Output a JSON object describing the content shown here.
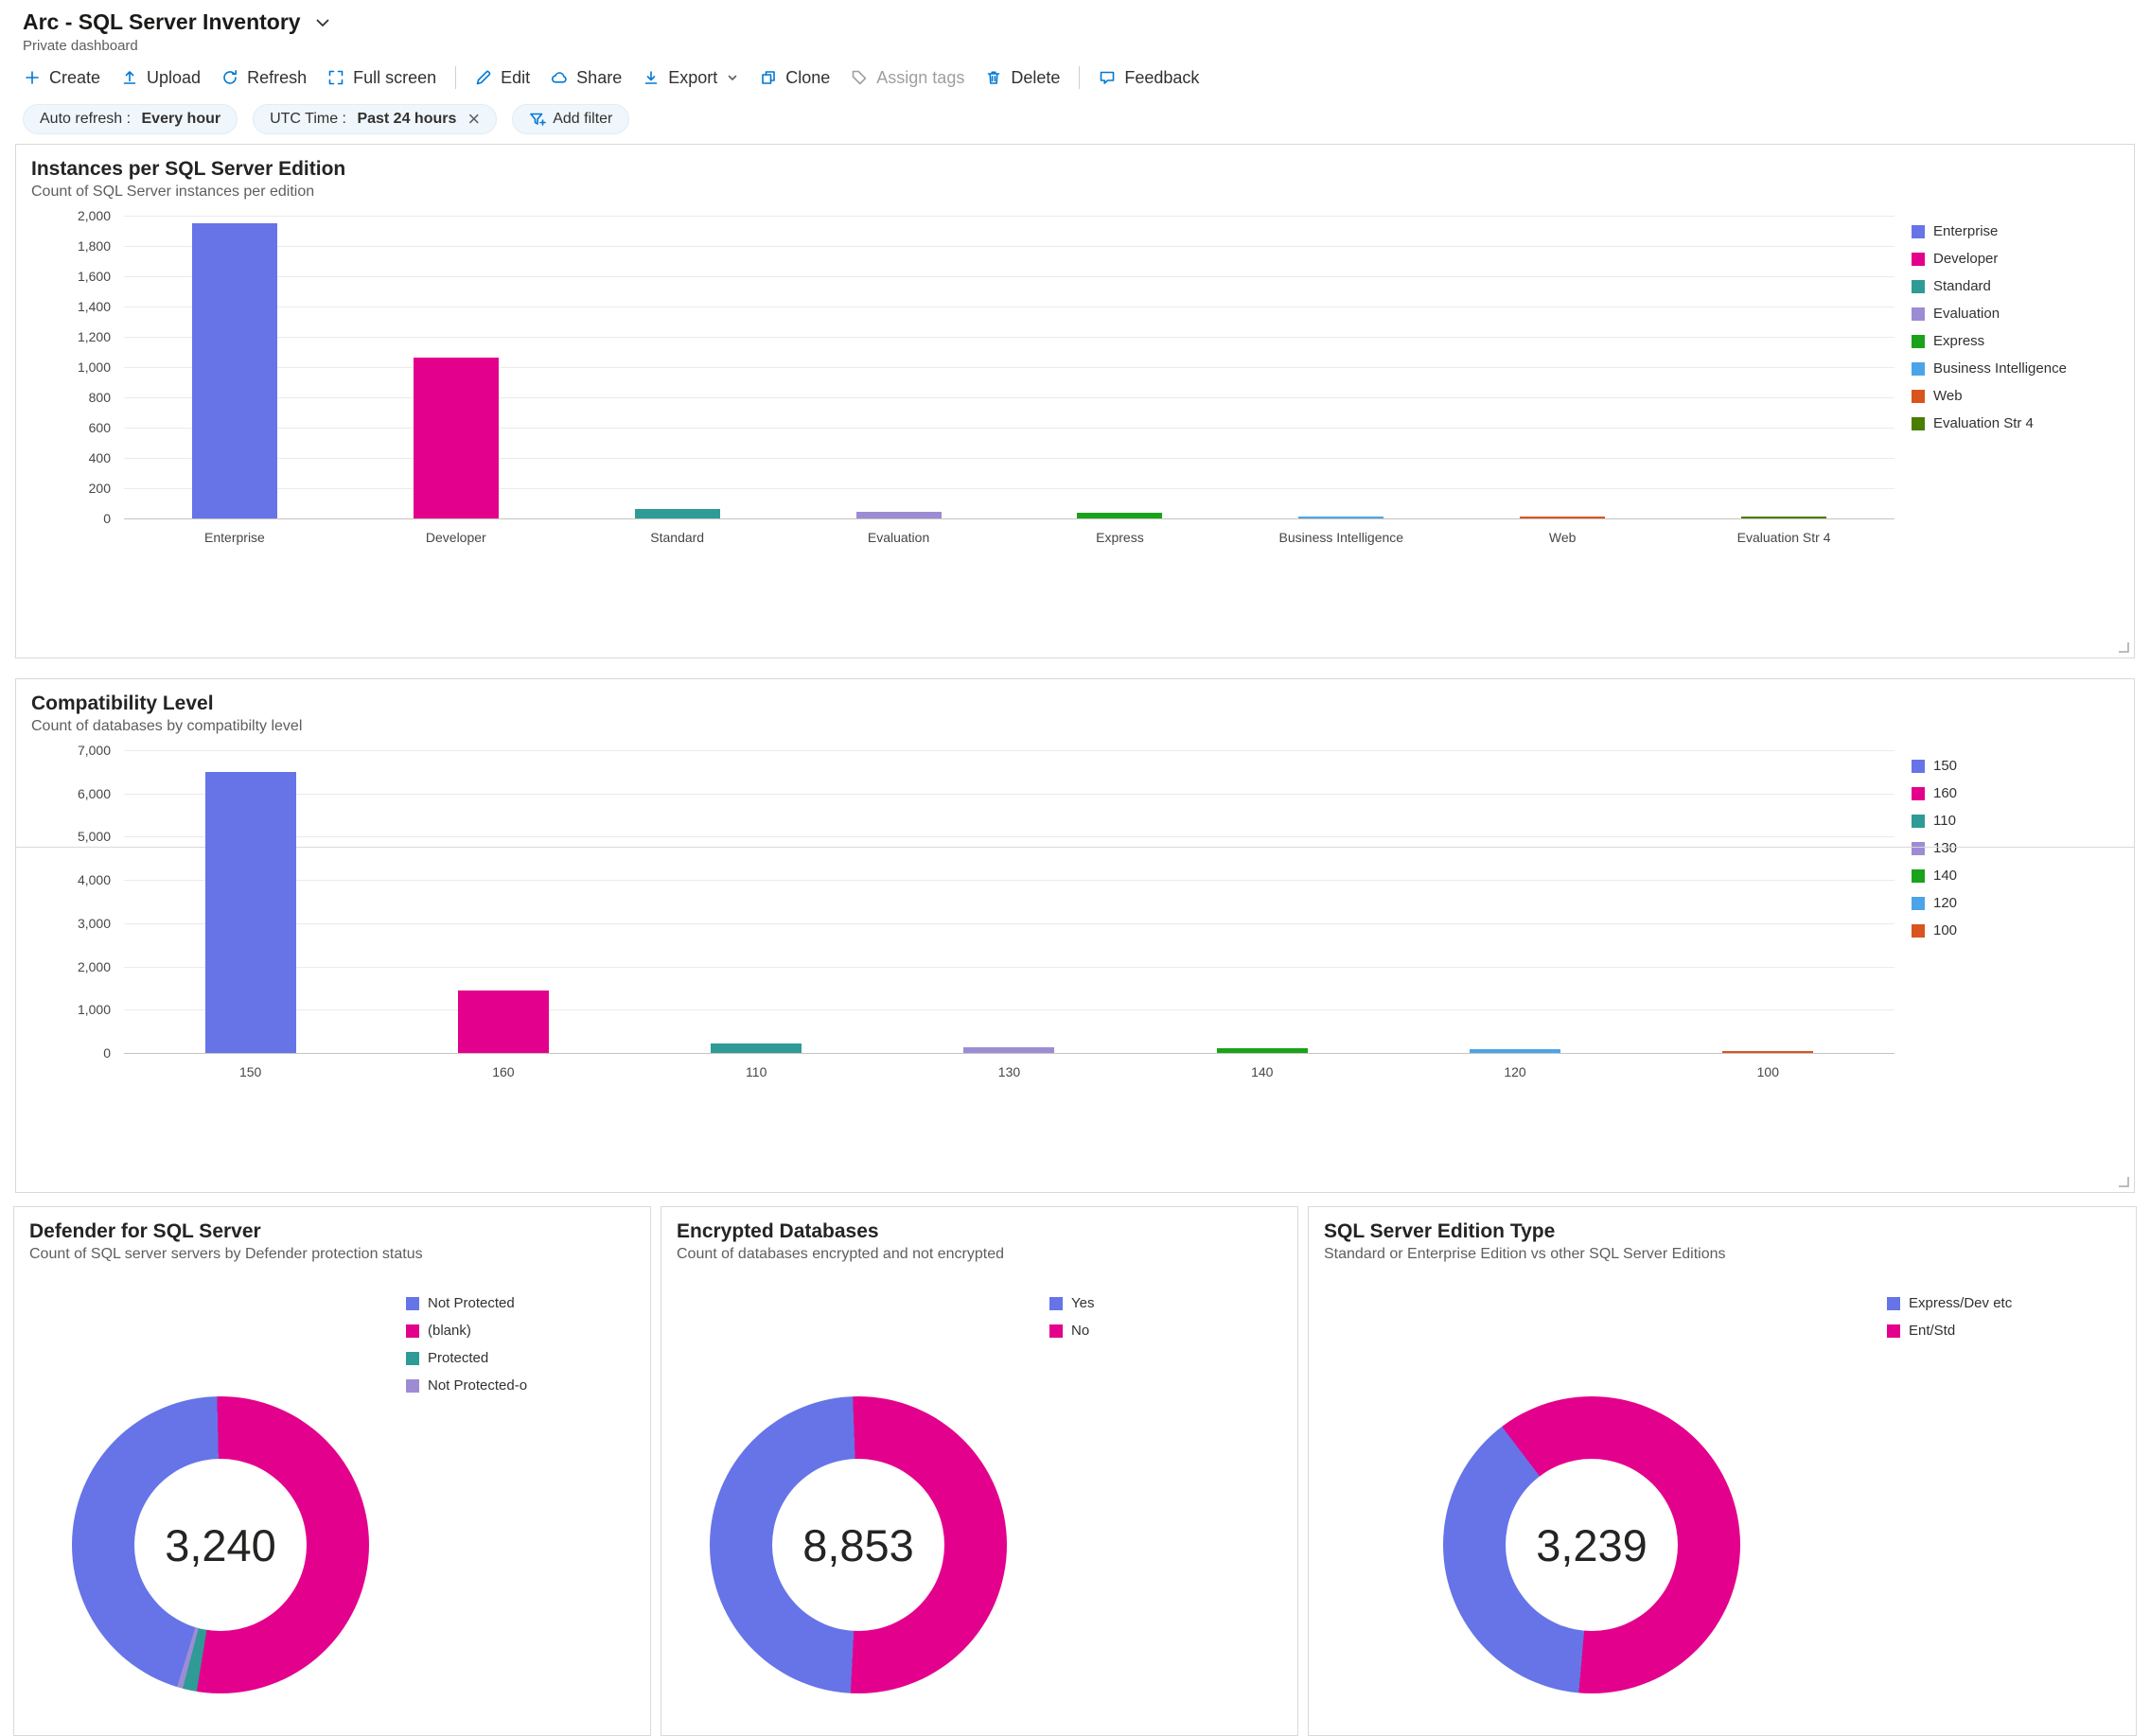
{
  "colors": {
    "accent": "#0078d4",
    "disabled": "#a19f9d",
    "chevron": "#605e5c"
  },
  "header": {
    "title": "Arc - SQL Server Inventory",
    "subtitle": "Private dashboard"
  },
  "toolbar": [
    {
      "id": "create",
      "label": "Create",
      "icon": "plus-icon",
      "enabled": true
    },
    {
      "id": "upload",
      "label": "Upload",
      "icon": "upload-icon",
      "enabled": true
    },
    {
      "id": "refresh",
      "label": "Refresh",
      "icon": "refresh-icon",
      "enabled": true
    },
    {
      "id": "fullscreen",
      "label": "Full screen",
      "icon": "fullscreen-icon",
      "enabled": true,
      "divider_after": true
    },
    {
      "id": "edit",
      "label": "Edit",
      "icon": "pencil-icon",
      "enabled": true
    },
    {
      "id": "share",
      "label": "Share",
      "icon": "cloud-icon",
      "enabled": true
    },
    {
      "id": "export",
      "label": "Export",
      "icon": "download-icon",
      "enabled": true,
      "has_chevron": true
    },
    {
      "id": "clone",
      "label": "Clone",
      "icon": "copy-icon",
      "enabled": true
    },
    {
      "id": "assign-tags",
      "label": "Assign tags",
      "icon": "tag-icon",
      "enabled": false
    },
    {
      "id": "delete",
      "label": "Delete",
      "icon": "trash-icon",
      "enabled": true,
      "divider_after": true
    },
    {
      "id": "feedback",
      "label": "Feedback",
      "icon": "feedback-icon",
      "enabled": true
    }
  ],
  "filters": {
    "pills": [
      {
        "label": "Auto refresh :",
        "value": "Every hour",
        "removable": false
      },
      {
        "label": "UTC Time :",
        "value": "Past 24 hours",
        "removable": true
      }
    ],
    "add_filter_label": "Add filter"
  },
  "chart_data": [
    {
      "id": "instances-per-sql-server-edition",
      "type": "bar",
      "title": "Instances per SQL Server Edition",
      "subtitle": "Count of SQL Server instances per edition",
      "categories": [
        "Enterprise",
        "Developer",
        "Standard",
        "Evaluation",
        "Express",
        "Business Intelligence",
        "Web",
        "Evaluation Str 4"
      ],
      "values": [
        1950,
        1060,
        60,
        45,
        40,
        8,
        5,
        4
      ],
      "colors": [
        "#6674E8",
        "#E3008C",
        "#2E9B97",
        "#9D8CD4",
        "#1AA31A",
        "#4CA4E8",
        "#D9551D",
        "#4A7D00"
      ],
      "ylim": [
        0,
        2000
      ],
      "ytick_step": 200,
      "grid": true,
      "legend_position": "right"
    },
    {
      "id": "compatibility-level",
      "type": "bar",
      "title": "Compatibility Level",
      "subtitle": "Count of databases by compatibilty level",
      "categories": [
        "150",
        "160",
        "110",
        "130",
        "140",
        "120",
        "100"
      ],
      "values": [
        6500,
        1450,
        230,
        130,
        110,
        90,
        15
      ],
      "colors": [
        "#6674E8",
        "#E3008C",
        "#2E9B97",
        "#9D8CD4",
        "#1AA31A",
        "#4CA4E8",
        "#D9551D"
      ],
      "ylim": [
        0,
        7000
      ],
      "ytick_step": 1000,
      "grid": true,
      "legend_position": "right"
    },
    {
      "id": "defender-for-sql-server",
      "type": "donut",
      "title": "Defender for SQL Server",
      "subtitle": "Count of SQL server servers by Defender protection status",
      "center_label": "3,240",
      "total": 3240,
      "slices": [
        {
          "label": "Not Protected",
          "value": 1455,
          "color": "#6674E8"
        },
        {
          "label": "(blank)",
          "value": 1715,
          "color": "#E3008C"
        },
        {
          "label": "Protected",
          "value": 50,
          "color": "#2E9B97"
        },
        {
          "label": "Not Protected-o",
          "value": 20,
          "color": "#9D8CD4"
        }
      ],
      "start_angle": 197,
      "legend_position": "right"
    },
    {
      "id": "encrypted-databases",
      "type": "donut",
      "title": "Encrypted Databases",
      "subtitle": "Count of databases encrypted and not encrypted",
      "center_label": "8,853",
      "total": 8853,
      "slices": [
        {
          "label": "Yes",
          "value": 4300,
          "color": "#6674E8"
        },
        {
          "label": "No",
          "value": 4553,
          "color": "#E3008C"
        }
      ],
      "start_angle": 183,
      "legend_position": "right"
    },
    {
      "id": "sql-server-edition-type",
      "type": "donut",
      "title": "SQL Server Edition Type",
      "subtitle": "Standard or Enterprise Edition vs other SQL Server Editions",
      "center_label": "3,239",
      "total": 3239,
      "slices": [
        {
          "label": "Express/Dev etc",
          "value": 1240,
          "color": "#6674E8"
        },
        {
          "label": "Ent/Std",
          "value": 1999,
          "color": "#E3008C"
        }
      ],
      "start_angle": 185,
      "legend_position": "right"
    }
  ]
}
